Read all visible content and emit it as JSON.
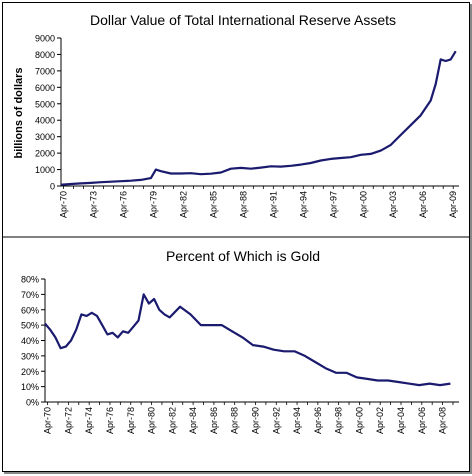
{
  "chart_data": [
    {
      "type": "line",
      "title": "Dollar Value of Total International Reserve Assets",
      "ylabel": "billions of dollars",
      "xlabel": "",
      "ylim": [
        0,
        9000
      ],
      "yticks": [
        0,
        1000,
        2000,
        3000,
        4000,
        5000,
        6000,
        7000,
        8000,
        9000
      ],
      "x_tick_labels": [
        "Apr-70",
        "Apr-73",
        "Apr-76",
        "Apr-79",
        "Apr-82",
        "Apr-85",
        "Apr-88",
        "Apr-91",
        "Apr-94",
        "Apr-97",
        "Apr-00",
        "Apr-03",
        "Apr-06",
        "Apr-09"
      ],
      "grid": false,
      "line_color": "#1a1a6e",
      "series": [
        {
          "x": [
            1970,
            1971,
            1972,
            1973,
            1974,
            1975,
            1976,
            1977,
            1978,
            1979,
            1979.5,
            1980,
            1981,
            1982,
            1983,
            1984,
            1985,
            1986,
            1987,
            1988,
            1989,
            1990,
            1991,
            1992,
            1993,
            1994,
            1995,
            1996,
            1997,
            1998,
            1999,
            2000,
            2001,
            2002,
            2003,
            2004,
            2005,
            2006,
            2007,
            2007.5,
            2008,
            2008.5,
            2009,
            2009.5
          ],
          "y": [
            80,
            120,
            160,
            190,
            230,
            260,
            290,
            320,
            370,
            480,
            1000,
            900,
            760,
            760,
            780,
            720,
            750,
            820,
            1050,
            1100,
            1050,
            1120,
            1200,
            1180,
            1230,
            1300,
            1400,
            1550,
            1650,
            1700,
            1750,
            1900,
            1950,
            2150,
            2500,
            3100,
            3700,
            4300,
            5200,
            6200,
            7700,
            7600,
            7700,
            8200
          ]
        }
      ]
    },
    {
      "type": "line",
      "title": "Percent of Which is Gold",
      "ylabel": "",
      "xlabel": "",
      "ylim": [
        0,
        80
      ],
      "yticks": [
        "0%",
        "10%",
        "20%",
        "30%",
        "40%",
        "50%",
        "60%",
        "70%",
        "80%"
      ],
      "x_tick_labels": [
        "Apr-70",
        "Apr-72",
        "Apr-74",
        "Apr-76",
        "Apr-78",
        "Apr-80",
        "Apr-82",
        "Apr-84",
        "Apr-86",
        "Apr-88",
        "Apr-90",
        "Apr-92",
        "Apr-94",
        "Apr-96",
        "Apr-98",
        "Apr-00",
        "Apr-02",
        "Apr-04",
        "Apr-06",
        "Apr-08"
      ],
      "grid": false,
      "line_color": "#1a1a6e",
      "series": [
        {
          "x": [
            1970,
            1970.5,
            1971,
            1971.5,
            1972,
            1972.5,
            1973,
            1973.5,
            1974,
            1974.5,
            1975,
            1975.5,
            1976,
            1976.5,
            1977,
            1977.5,
            1978,
            1978.5,
            1979,
            1979.5,
            1980,
            1980.5,
            1981,
            1981.5,
            1982,
            1983,
            1984,
            1985,
            1986,
            1987,
            1988,
            1989,
            1990,
            1991,
            1992,
            1993,
            1994,
            1995,
            1996,
            1997,
            1998,
            1999,
            2000,
            2001,
            2002,
            2003,
            2004,
            2005,
            2006,
            2007,
            2008,
            2009
          ],
          "y": [
            51,
            47,
            42,
            35,
            36,
            40,
            47,
            57,
            56,
            58,
            56,
            50,
            44,
            45,
            42,
            46,
            45,
            49,
            53,
            70,
            64,
            67,
            60,
            57,
            55,
            62,
            57,
            50,
            50,
            50,
            46,
            42,
            37,
            36,
            34,
            33,
            33,
            30,
            26,
            22,
            19,
            19,
            16,
            15,
            14,
            14,
            13,
            12,
            11,
            12,
            11,
            12
          ]
        }
      ]
    }
  ]
}
